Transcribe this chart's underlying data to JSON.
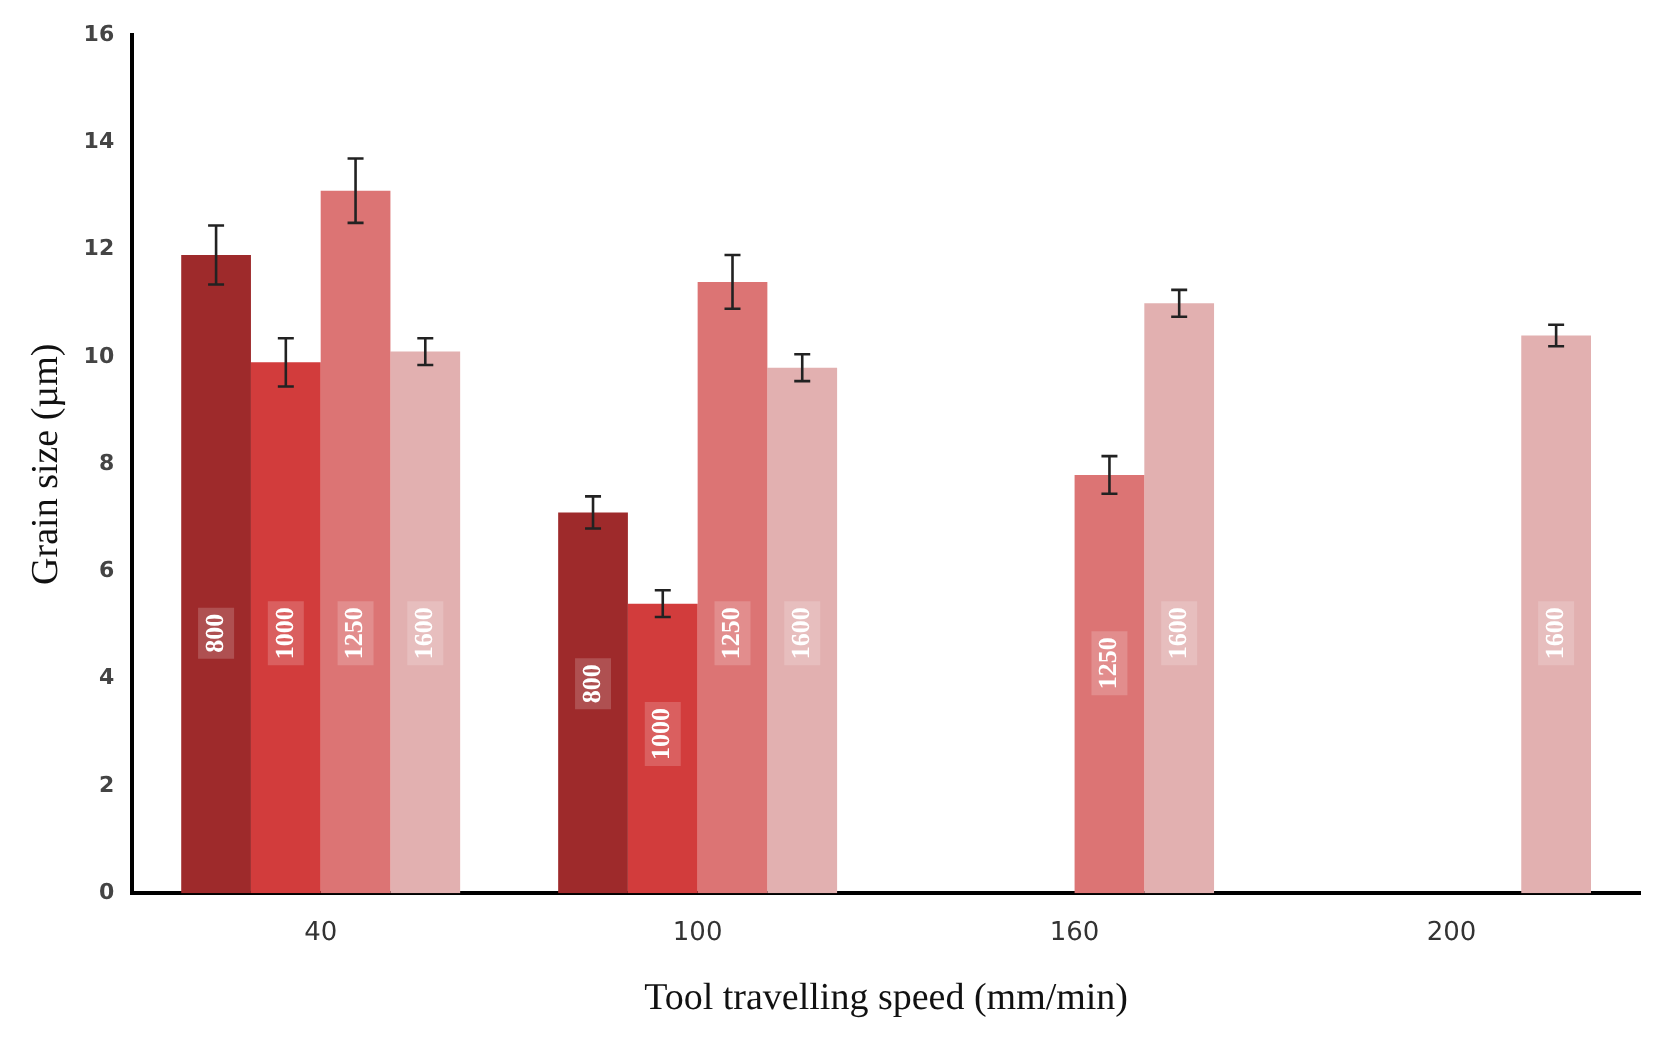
{
  "chart_data": {
    "type": "bar",
    "xlabel": "Tool travelling speed (mm/min)",
    "ylabel": "Grain size (µm)",
    "categories": [
      "40",
      "100",
      "160",
      "200"
    ],
    "series": [
      {
        "name": "800",
        "color": "#9e2a2b",
        "values": [
          11.9,
          7.1,
          null,
          null
        ],
        "errors": [
          0.55,
          0.3,
          null,
          null
        ]
      },
      {
        "name": "1000",
        "color": "#d23c3c",
        "values": [
          9.9,
          5.4,
          null,
          null
        ],
        "errors": [
          0.45,
          0.25,
          null,
          null
        ]
      },
      {
        "name": "1250",
        "color": "#dc7474",
        "values": [
          13.1,
          11.4,
          7.8,
          null
        ],
        "errors": [
          0.6,
          0.5,
          0.35,
          null
        ]
      },
      {
        "name": "1600",
        "color": "#e2b0b0",
        "values": [
          10.1,
          9.8,
          11.0,
          10.4
        ],
        "errors": [
          0.25,
          0.25,
          0.25,
          0.2
        ]
      }
    ],
    "ylim": [
      0,
      16
    ],
    "yticks": [
      0,
      2,
      4,
      6,
      8,
      10,
      12,
      14,
      16
    ],
    "grid": false,
    "legend": false
  }
}
